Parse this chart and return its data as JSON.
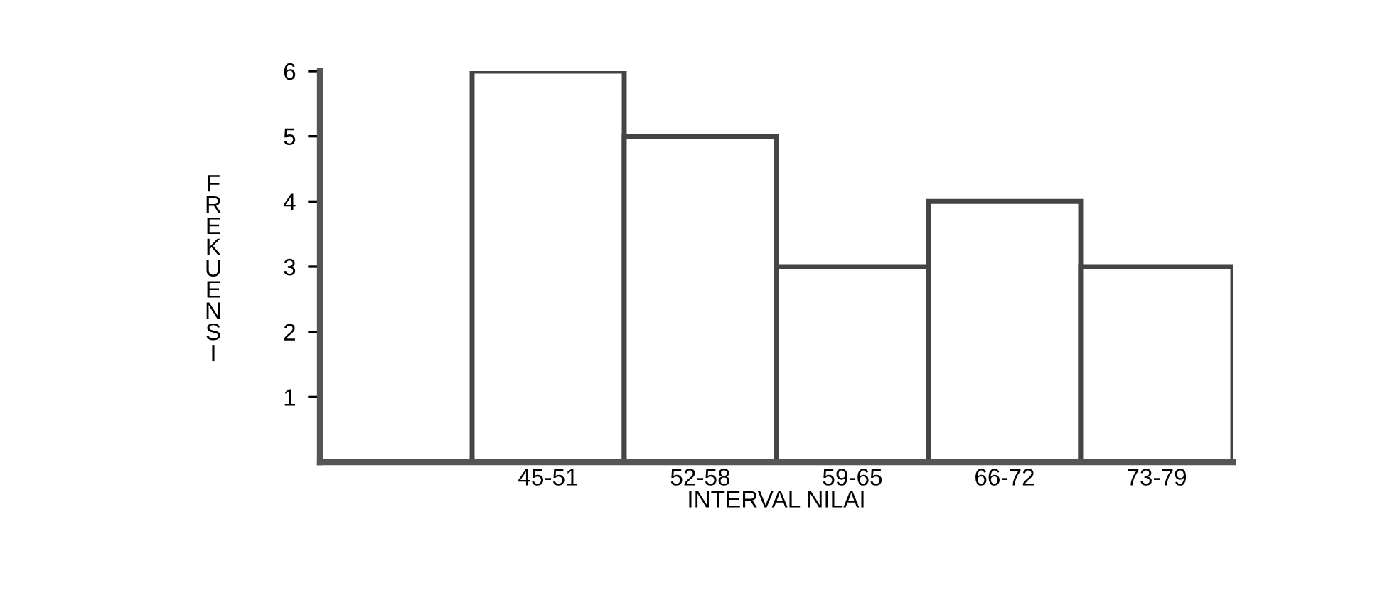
{
  "chart_data": {
    "type": "bar",
    "xlabel": "INTERVAL NILAI",
    "ylabel": "FREKUENSI",
    "categories": [
      null,
      "45-51",
      "52-58",
      "59-65",
      "66-72",
      "73-79"
    ],
    "values": [
      null,
      6,
      5,
      3,
      4,
      3
    ],
    "color": "#ffffff",
    "ylim": [
      0,
      6
    ],
    "yticks": [
      1,
      2,
      3,
      4,
      5,
      6
    ],
    "grid": false,
    "legend": false
  }
}
